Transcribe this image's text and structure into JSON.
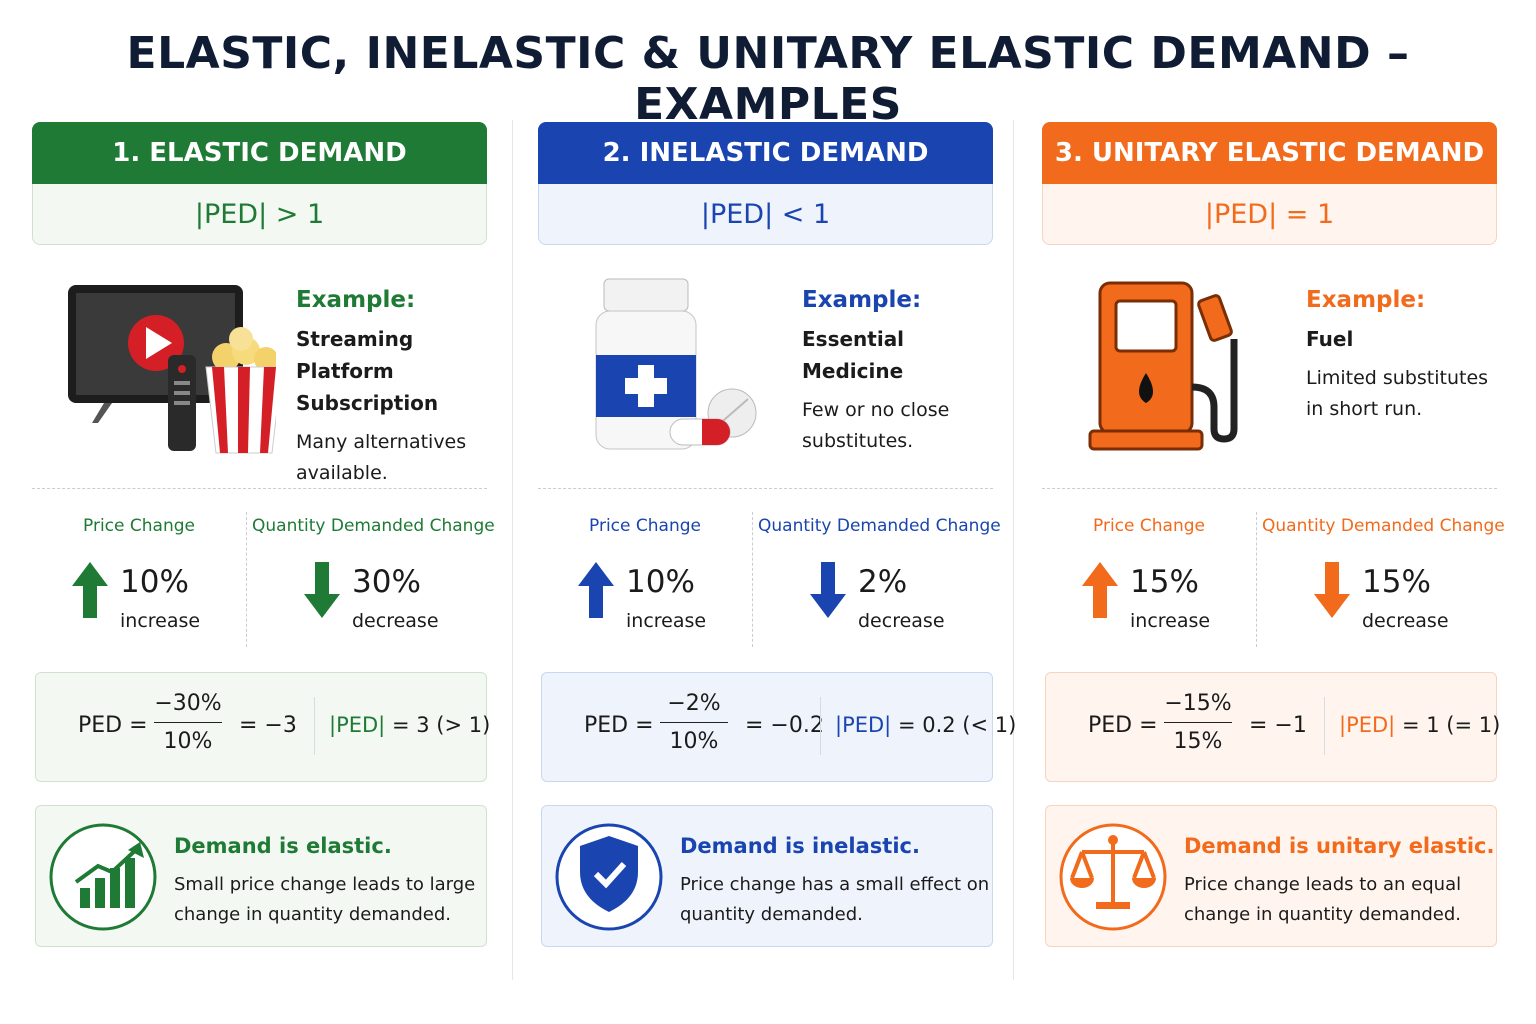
{
  "title": "ELASTIC, INELASTIC & UNITARY ELASTIC DEMAND – EXAMPLES",
  "columns": [
    {
      "color": "#1e7a34",
      "tint": "#f3f9f2",
      "border": "#cfe3cc",
      "header": "1. ELASTIC DEMAND",
      "condition": "|PED| > 1",
      "example_label": "Example:",
      "example": "Streaming Platform Subscription",
      "note": "Many alternatives available.",
      "price_label": "Price Change",
      "price_change": "10%",
      "price_direction": "increase",
      "quantity_label": "Quantity Demanded Change",
      "quantity_change": "30%",
      "quantity_direction": "decrease",
      "formula_lhs": "PED =",
      "numerator": "−30%",
      "denominator": "10%",
      "result": "= −3",
      "abs_label": "|PED|",
      "abs_result": "= 3 (> 1)",
      "conclusion": "Demand is elastic.",
      "explanation": "Small price change leads to large change in quantity demanded."
    },
    {
      "color": "#1a45b0",
      "tint": "#eff4fc",
      "border": "#c9d7f1",
      "header": "2. INELASTIC DEMAND",
      "condition": "|PED| < 1",
      "example_label": "Example:",
      "example": "Essential Medicine",
      "note": "Few or no close substitutes.",
      "price_label": "Price Change",
      "price_change": "10%",
      "price_direction": "increase",
      "quantity_label": "Quantity Demanded Change",
      "quantity_change": "2%",
      "quantity_direction": "decrease",
      "formula_lhs": "PED =",
      "numerator": "−2%",
      "denominator": "10%",
      "result": "= −0.2",
      "abs_label": "|PED|",
      "abs_result": "= 0.2 (< 1)",
      "conclusion": "Demand is inelastic.",
      "explanation": "Price change has a small effect on quantity demanded."
    },
    {
      "color": "#f26a1b",
      "tint": "#fff5ee",
      "border": "#f7d4bd",
      "header": "3. UNITARY ELASTIC DEMAND",
      "condition": "|PED| = 1",
      "example_label": "Example:",
      "example": "Fuel",
      "note": "Limited substitutes in short run.",
      "price_label": "Price Change",
      "price_change": "15%",
      "price_direction": "increase",
      "quantity_label": "Quantity Demanded Change",
      "quantity_change": "15%",
      "quantity_direction": "decrease",
      "formula_lhs": "PED =",
      "numerator": "−15%",
      "denominator": "15%",
      "result": "= −1",
      "abs_label": "|PED|",
      "abs_result": "= 1 (= 1)",
      "conclusion": "Demand is unitary elastic.",
      "explanation": "Price change leads to an equal change in quantity demanded."
    }
  ]
}
